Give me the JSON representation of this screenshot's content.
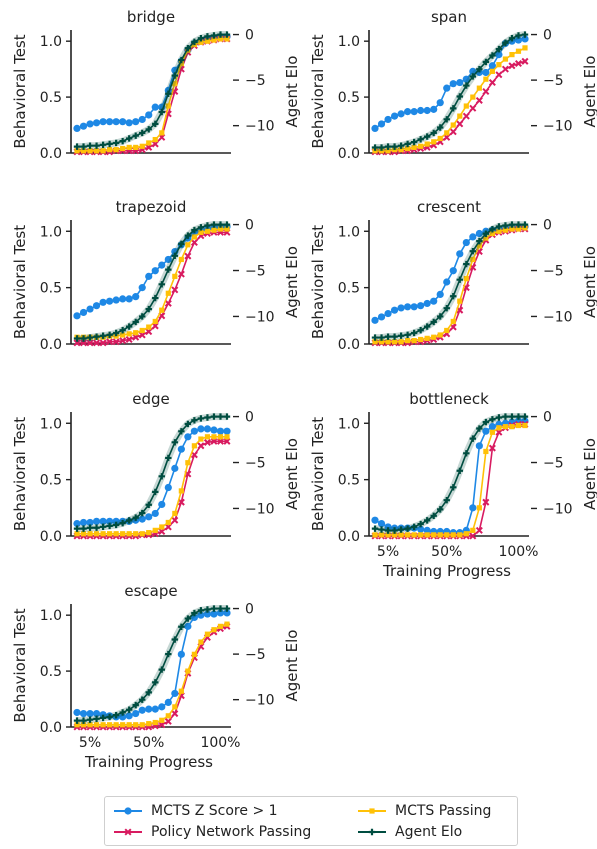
{
  "colors": {
    "mcts_z": "#1e88e5",
    "policy": "#d81b60",
    "mcts_pass": "#ffc107",
    "agent_elo": "#004d40",
    "axis": "#222222"
  },
  "chart_data": [
    {
      "type": "line",
      "title": "bridge",
      "ylabel": "Behavioral Test",
      "y2label": "Agent Elo",
      "xlabel": "",
      "ylim": [
        0,
        1.1
      ],
      "y2lim": [
        -13.0,
        0.5
      ],
      "yticks": [
        "0.0",
        "0.5",
        "1.0"
      ],
      "y2ticks": [
        "0",
        "−5",
        "−10"
      ],
      "xticks": [],
      "n": 24,
      "series": [
        {
          "key": "mcts_z",
          "values": [
            0.22,
            0.24,
            0.26,
            0.27,
            0.28,
            0.28,
            0.28,
            0.28,
            0.27,
            0.28,
            0.3,
            0.34,
            0.41,
            0.41,
            0.56,
            0.74,
            0.82,
            0.92,
            0.98,
            1.0,
            1.02,
            1.03,
            1.04,
            1.04
          ]
        },
        {
          "key": "policy",
          "values": [
            0.01,
            0.01,
            0.01,
            0.01,
            0.01,
            0.01,
            0.02,
            0.02,
            0.02,
            0.02,
            0.03,
            0.05,
            0.08,
            0.14,
            0.35,
            0.55,
            0.75,
            0.9,
            0.96,
            0.99,
            1.0,
            1.01,
            1.02,
            1.02
          ]
        },
        {
          "key": "mcts_pass",
          "values": [
            0.02,
            0.02,
            0.02,
            0.02,
            0.02,
            0.03,
            0.03,
            0.04,
            0.05,
            0.05,
            0.06,
            0.09,
            0.12,
            0.18,
            0.42,
            0.62,
            0.8,
            0.92,
            0.97,
            0.99,
            1.0,
            1.01,
            1.02,
            1.02
          ]
        },
        {
          "key": "agent_elo",
          "values": [
            -12.3,
            -12.3,
            -12.2,
            -12.2,
            -12.1,
            -12.0,
            -11.9,
            -11.7,
            -11.4,
            -11.1,
            -10.8,
            -10.4,
            -9.8,
            -8.5,
            -6.5,
            -4.5,
            -2.8,
            -1.5,
            -0.8,
            -0.4,
            -0.2,
            -0.1,
            0.0,
            0.0
          ]
        }
      ]
    },
    {
      "type": "line",
      "title": "span",
      "ylabel": "Behavioral Test",
      "y2label": "Agent Elo",
      "xlabel": "",
      "ylim": [
        0,
        1.1
      ],
      "y2lim": [
        -13.0,
        0.5
      ],
      "yticks": [
        "0.0",
        "0.5",
        "1.0"
      ],
      "y2ticks": [
        "0",
        "−5",
        "−10"
      ],
      "xticks": [],
      "n": 24,
      "series": [
        {
          "key": "mcts_z",
          "values": [
            0.22,
            0.26,
            0.3,
            0.33,
            0.35,
            0.37,
            0.37,
            0.38,
            0.38,
            0.39,
            0.45,
            0.58,
            0.62,
            0.63,
            0.66,
            0.73,
            0.72,
            0.72,
            0.78,
            0.88,
            0.98,
            1.0,
            1.01,
            1.02
          ]
        },
        {
          "key": "policy",
          "values": [
            0.01,
            0.01,
            0.01,
            0.01,
            0.02,
            0.02,
            0.03,
            0.04,
            0.05,
            0.07,
            0.1,
            0.14,
            0.19,
            0.26,
            0.33,
            0.4,
            0.47,
            0.55,
            0.63,
            0.7,
            0.75,
            0.78,
            0.8,
            0.82
          ]
        },
        {
          "key": "mcts_pass",
          "values": [
            0.02,
            0.02,
            0.02,
            0.03,
            0.03,
            0.04,
            0.05,
            0.06,
            0.08,
            0.1,
            0.13,
            0.18,
            0.25,
            0.33,
            0.42,
            0.5,
            0.58,
            0.66,
            0.73,
            0.79,
            0.84,
            0.88,
            0.91,
            0.94
          ]
        },
        {
          "key": "agent_elo",
          "values": [
            -12.4,
            -12.4,
            -12.3,
            -12.3,
            -12.2,
            -12.0,
            -11.8,
            -11.5,
            -11.2,
            -10.8,
            -10.2,
            -9.3,
            -8.1,
            -6.8,
            -5.6,
            -4.6,
            -3.8,
            -3.0,
            -2.3,
            -1.6,
            -0.9,
            -0.4,
            -0.1,
            0.0
          ]
        }
      ]
    },
    {
      "type": "line",
      "title": "trapezoid",
      "ylabel": "Behavioral Test",
      "y2label": "Agent Elo",
      "xlabel": "",
      "ylim": [
        0,
        1.1
      ],
      "y2lim": [
        -13.0,
        0.5
      ],
      "yticks": [
        "0.0",
        "0.5",
        "1.0"
      ],
      "y2ticks": [
        "0",
        "−5",
        "−10"
      ],
      "xticks": [],
      "n": 24,
      "series": [
        {
          "key": "mcts_z",
          "values": [
            0.25,
            0.28,
            0.31,
            0.34,
            0.37,
            0.38,
            0.39,
            0.4,
            0.4,
            0.42,
            0.5,
            0.6,
            0.65,
            0.7,
            0.75,
            0.82,
            0.88,
            0.94,
            0.98,
            1.0,
            1.02,
            1.03,
            1.04,
            1.04
          ]
        },
        {
          "key": "policy",
          "values": [
            0.01,
            0.01,
            0.01,
            0.01,
            0.01,
            0.02,
            0.02,
            0.03,
            0.04,
            0.06,
            0.08,
            0.11,
            0.16,
            0.25,
            0.36,
            0.48,
            0.62,
            0.78,
            0.9,
            0.96,
            0.98,
            0.99,
            0.99,
            0.99
          ]
        },
        {
          "key": "mcts_pass",
          "values": [
            0.06,
            0.06,
            0.06,
            0.06,
            0.06,
            0.07,
            0.07,
            0.08,
            0.09,
            0.1,
            0.12,
            0.15,
            0.2,
            0.3,
            0.45,
            0.6,
            0.75,
            0.88,
            0.95,
            0.99,
            1.0,
            1.01,
            1.02,
            1.02
          ]
        },
        {
          "key": "agent_elo",
          "values": [
            -12.4,
            -12.4,
            -12.3,
            -12.2,
            -12.1,
            -12.0,
            -11.8,
            -11.5,
            -11.1,
            -10.6,
            -10.0,
            -9.2,
            -8.0,
            -6.5,
            -4.9,
            -3.4,
            -2.1,
            -1.2,
            -0.6,
            -0.3,
            -0.1,
            0.0,
            0.0,
            0.0
          ]
        }
      ]
    },
    {
      "type": "line",
      "title": "crescent",
      "ylabel": "Behavioral Test",
      "y2label": "Agent Elo",
      "xlabel": "",
      "ylim": [
        0,
        1.1
      ],
      "y2lim": [
        -13.0,
        0.5
      ],
      "yticks": [
        "0.0",
        "0.5",
        "1.0"
      ],
      "y2ticks": [
        "0",
        "−5",
        "−10"
      ],
      "xticks": [],
      "n": 24,
      "series": [
        {
          "key": "mcts_z",
          "values": [
            0.21,
            0.24,
            0.27,
            0.3,
            0.32,
            0.33,
            0.33,
            0.34,
            0.36,
            0.38,
            0.44,
            0.55,
            0.65,
            0.8,
            0.9,
            0.95,
            0.98,
            1.0,
            1.01,
            1.02,
            1.02,
            1.03,
            1.03,
            1.04
          ]
        },
        {
          "key": "policy",
          "values": [
            0.01,
            0.01,
            0.01,
            0.01,
            0.01,
            0.01,
            0.02,
            0.02,
            0.03,
            0.04,
            0.06,
            0.09,
            0.15,
            0.3,
            0.5,
            0.68,
            0.82,
            0.92,
            0.97,
            0.99,
            1.0,
            1.01,
            1.02,
            1.02
          ]
        },
        {
          "key": "mcts_pass",
          "values": [
            0.02,
            0.02,
            0.02,
            0.02,
            0.02,
            0.03,
            0.03,
            0.04,
            0.05,
            0.06,
            0.08,
            0.12,
            0.2,
            0.38,
            0.58,
            0.75,
            0.87,
            0.94,
            0.98,
            1.0,
            1.01,
            1.02,
            1.02,
            1.03
          ]
        },
        {
          "key": "agent_elo",
          "values": [
            -12.3,
            -12.3,
            -12.2,
            -12.2,
            -12.1,
            -12.0,
            -11.8,
            -11.5,
            -11.1,
            -10.6,
            -10.0,
            -9.1,
            -7.8,
            -6.0,
            -4.3,
            -2.9,
            -1.8,
            -1.0,
            -0.5,
            -0.2,
            -0.1,
            0.0,
            0.0,
            0.0
          ]
        }
      ]
    },
    {
      "type": "line",
      "title": "edge",
      "ylabel": "Behavioral Test",
      "y2label": "Agent Elo",
      "xlabel": "",
      "ylim": [
        0,
        1.1
      ],
      "y2lim": [
        -13.0,
        0.5
      ],
      "yticks": [
        "0.0",
        "0.5",
        "1.0"
      ],
      "y2ticks": [
        "0",
        "−5",
        "−10"
      ],
      "xticks": [],
      "n": 24,
      "series": [
        {
          "key": "mcts_z",
          "values": [
            0.11,
            0.12,
            0.12,
            0.13,
            0.13,
            0.13,
            0.13,
            0.13,
            0.13,
            0.14,
            0.15,
            0.17,
            0.2,
            0.28,
            0.43,
            0.6,
            0.77,
            0.88,
            0.93,
            0.95,
            0.95,
            0.94,
            0.93,
            0.93
          ]
        },
        {
          "key": "policy",
          "values": [
            0.0,
            0.0,
            0.0,
            0.0,
            0.0,
            0.0,
            0.0,
            0.0,
            0.0,
            0.0,
            0.01,
            0.01,
            0.02,
            0.04,
            0.08,
            0.14,
            0.3,
            0.55,
            0.72,
            0.8,
            0.83,
            0.84,
            0.84,
            0.84
          ]
        },
        {
          "key": "mcts_pass",
          "values": [
            0.02,
            0.02,
            0.02,
            0.02,
            0.02,
            0.02,
            0.02,
            0.02,
            0.02,
            0.02,
            0.02,
            0.03,
            0.05,
            0.08,
            0.12,
            0.2,
            0.4,
            0.65,
            0.8,
            0.86,
            0.88,
            0.88,
            0.88,
            0.88
          ]
        },
        {
          "key": "agent_elo",
          "values": [
            -12.2,
            -12.2,
            -12.1,
            -12.1,
            -12.0,
            -11.9,
            -11.8,
            -11.6,
            -11.3,
            -11.0,
            -10.5,
            -9.6,
            -8.2,
            -6.5,
            -4.5,
            -2.8,
            -1.6,
            -0.8,
            -0.4,
            -0.2,
            -0.1,
            0.0,
            0.0,
            0.0
          ]
        }
      ]
    },
    {
      "type": "line",
      "title": "bottleneck",
      "ylabel": "Behavioral Test",
      "y2label": "Agent Elo",
      "xlabel": "Training Progress",
      "ylim": [
        0,
        1.1
      ],
      "y2lim": [
        -13.0,
        0.5
      ],
      "yticks": [
        "0.0",
        "0.5",
        "1.0"
      ],
      "y2ticks": [
        "0",
        "−5",
        "−10"
      ],
      "xticks": [
        "5%",
        "50%",
        "100%"
      ],
      "n": 24,
      "series": [
        {
          "key": "mcts_z",
          "values": [
            0.14,
            0.11,
            0.08,
            0.07,
            0.07,
            0.07,
            0.07,
            0.06,
            0.05,
            0.04,
            0.04,
            0.04,
            0.03,
            0.03,
            0.05,
            0.25,
            0.8,
            0.93,
            0.97,
            0.99,
            1.0,
            1.01,
            1.02,
            1.02
          ]
        },
        {
          "key": "policy",
          "values": [
            0.0,
            0.0,
            0.0,
            0.0,
            0.0,
            0.0,
            0.0,
            0.0,
            0.0,
            0.0,
            0.0,
            0.0,
            0.0,
            0.0,
            0.0,
            0.0,
            0.05,
            0.3,
            0.78,
            0.92,
            0.96,
            0.98,
            0.99,
            0.99
          ]
        },
        {
          "key": "mcts_pass",
          "values": [
            0.01,
            0.01,
            0.01,
            0.01,
            0.01,
            0.01,
            0.01,
            0.01,
            0.01,
            0.01,
            0.01,
            0.01,
            0.01,
            0.01,
            0.02,
            0.05,
            0.25,
            0.75,
            0.92,
            0.96,
            0.97,
            0.97,
            0.98,
            0.98
          ]
        },
        {
          "key": "agent_elo",
          "values": [
            -12.2,
            -12.3,
            -12.4,
            -12.4,
            -12.3,
            -12.2,
            -12.0,
            -11.7,
            -11.3,
            -10.8,
            -10.1,
            -9.1,
            -7.7,
            -5.9,
            -4.0,
            -2.4,
            -1.3,
            -0.6,
            -0.3,
            -0.1,
            0.0,
            0.0,
            0.0,
            0.0
          ]
        }
      ]
    },
    {
      "type": "line",
      "title": "escape",
      "ylabel": "Behavioral Test",
      "y2label": "Agent Elo",
      "xlabel": "Training Progress",
      "ylim": [
        0,
        1.1
      ],
      "y2lim": [
        -13.0,
        0.5
      ],
      "yticks": [
        "0.0",
        "0.5",
        "1.0"
      ],
      "y2ticks": [
        "0",
        "−5",
        "−10"
      ],
      "xticks": [
        "5%",
        "50%",
        "100%"
      ],
      "n": 24,
      "series": [
        {
          "key": "mcts_z",
          "values": [
            0.13,
            0.12,
            0.12,
            0.12,
            0.11,
            0.1,
            0.09,
            0.09,
            0.1,
            0.12,
            0.15,
            0.16,
            0.16,
            0.18,
            0.22,
            0.3,
            0.65,
            0.9,
            0.98,
            1.0,
            1.01,
            1.01,
            1.02,
            1.02
          ]
        },
        {
          "key": "policy",
          "values": [
            0.0,
            0.0,
            0.0,
            0.0,
            0.0,
            0.0,
            0.0,
            0.0,
            0.0,
            0.0,
            0.0,
            0.0,
            0.01,
            0.02,
            0.05,
            0.12,
            0.28,
            0.48,
            0.62,
            0.72,
            0.8,
            0.85,
            0.88,
            0.9
          ]
        },
        {
          "key": "mcts_pass",
          "values": [
            0.02,
            0.02,
            0.02,
            0.02,
            0.02,
            0.02,
            0.02,
            0.02,
            0.02,
            0.02,
            0.02,
            0.03,
            0.04,
            0.06,
            0.1,
            0.18,
            0.32,
            0.5,
            0.65,
            0.76,
            0.83,
            0.87,
            0.9,
            0.92
          ]
        },
        {
          "key": "agent_elo",
          "values": [
            -12.3,
            -12.3,
            -12.2,
            -12.1,
            -12.0,
            -11.9,
            -11.7,
            -11.4,
            -11.1,
            -10.6,
            -10.0,
            -9.2,
            -8.1,
            -6.7,
            -5.0,
            -3.4,
            -2.0,
            -1.1,
            -0.5,
            -0.2,
            -0.1,
            0.0,
            0.0,
            0.0
          ]
        }
      ]
    }
  ],
  "legend": [
    {
      "key": "mcts_z",
      "label": "MCTS Z Score > 1",
      "marker": "circle"
    },
    {
      "key": "mcts_pass",
      "label": "MCTS Passing",
      "marker": "square"
    },
    {
      "key": "policy",
      "label": "Policy Network Passing",
      "marker": "x"
    },
    {
      "key": "agent_elo",
      "label": "Agent Elo",
      "marker": "plus"
    }
  ]
}
